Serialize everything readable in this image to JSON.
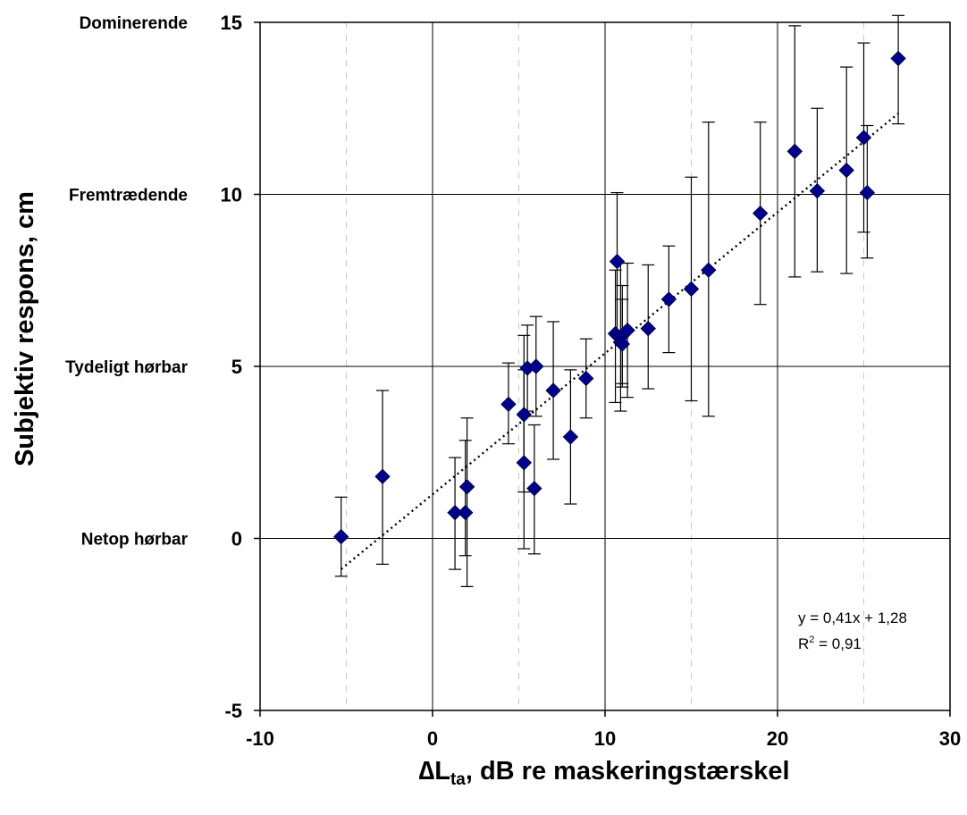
{
  "chart_data": {
    "type": "scatter",
    "xlabel": {
      "delta": "∆",
      "main": "L",
      "sub": "ta",
      "rest": ", dB re maskeringstærskel"
    },
    "ylabel": "Subjektiv respons, cm",
    "xlim": [
      -10,
      30
    ],
    "ylim": [
      -5,
      15
    ],
    "x_ticks": [
      "-10",
      "0",
      "10",
      "20",
      "30"
    ],
    "y_ticks": [
      "-5",
      "0",
      "5",
      "10",
      "15"
    ],
    "y_category_labels": [
      {
        "value": 15,
        "label": "Dominerende"
      },
      {
        "value": 10,
        "label": "Fremtrædende"
      },
      {
        "value": 5,
        "label": "Tydeligt hørbar"
      },
      {
        "value": 0,
        "label": "Netop hørbar"
      }
    ],
    "grid": {
      "major": true,
      "minor_x_dashed": true
    },
    "marker_color": "#00008B",
    "points": [
      {
        "x": -5.3,
        "y": 0.05,
        "lo": -1.1,
        "hi": 1.2
      },
      {
        "x": -2.9,
        "y": 1.8,
        "lo": -0.75,
        "hi": 4.3
      },
      {
        "x": 1.3,
        "y": 0.75,
        "lo": -0.9,
        "hi": 2.35
      },
      {
        "x": 1.9,
        "y": 0.75,
        "lo": -0.5,
        "hi": 2.85
      },
      {
        "x": 2.0,
        "y": 1.5,
        "lo": -1.4,
        "hi": 3.5
      },
      {
        "x": 4.4,
        "y": 3.9,
        "lo": 2.75,
        "hi": 5.1
      },
      {
        "x": 5.3,
        "y": 3.6,
        "lo": 1.35,
        "hi": 5.9
      },
      {
        "x": 5.3,
        "y": 2.2,
        "lo": -0.3,
        "hi": 4.9
      },
      {
        "x": 5.5,
        "y": 4.95,
        "lo": 3.7,
        "hi": 6.2
      },
      {
        "x": 5.9,
        "y": 1.45,
        "lo": -0.45,
        "hi": 3.3
      },
      {
        "x": 6.0,
        "y": 5.0,
        "lo": 3.55,
        "hi": 6.45
      },
      {
        "x": 7.0,
        "y": 4.3,
        "lo": 2.3,
        "hi": 6.3
      },
      {
        "x": 8.0,
        "y": 2.95,
        "lo": 1.0,
        "hi": 4.9
      },
      {
        "x": 8.9,
        "y": 4.65,
        "lo": 3.5,
        "hi": 5.8
      },
      {
        "x": 10.6,
        "y": 5.95,
        "lo": 3.95,
        "hi": 7.8
      },
      {
        "x": 10.7,
        "y": 8.05,
        "lo": 6.0,
        "hi": 10.05
      },
      {
        "x": 10.9,
        "y": 5.7,
        "lo": 3.7,
        "hi": 8.0
      },
      {
        "x": 11.0,
        "y": 5.9,
        "lo": 4.4,
        "hi": 7.35
      },
      {
        "x": 11.0,
        "y": 5.65,
        "lo": 4.5,
        "hi": 6.95
      },
      {
        "x": 11.3,
        "y": 6.05,
        "lo": 4.1,
        "hi": 8.0
      },
      {
        "x": 12.5,
        "y": 6.1,
        "lo": 4.35,
        "hi": 7.95
      },
      {
        "x": 13.7,
        "y": 6.95,
        "lo": 5.4,
        "hi": 8.5
      },
      {
        "x": 15.0,
        "y": 7.25,
        "lo": 4.0,
        "hi": 10.5
      },
      {
        "x": 16.0,
        "y": 7.8,
        "lo": 3.55,
        "hi": 12.1
      },
      {
        "x": 19.0,
        "y": 9.45,
        "lo": 6.8,
        "hi": 12.1
      },
      {
        "x": 21.0,
        "y": 11.25,
        "lo": 7.6,
        "hi": 14.9
      },
      {
        "x": 22.3,
        "y": 10.1,
        "lo": 7.75,
        "hi": 12.5
      },
      {
        "x": 24.0,
        "y": 10.7,
        "lo": 7.7,
        "hi": 13.7
      },
      {
        "x": 25.0,
        "y": 11.65,
        "lo": 8.9,
        "hi": 14.4
      },
      {
        "x": 25.2,
        "y": 10.05,
        "lo": 8.15,
        "hi": 12.0
      },
      {
        "x": 27.0,
        "y": 13.95,
        "lo": 12.05,
        "hi": 15.2
      }
    ],
    "trendline": {
      "slope": 0.41,
      "intercept": 1.28,
      "x_range": [
        -5.3,
        27.0
      ],
      "style": "dotted"
    },
    "annotation": {
      "equation": "y = 0,41x + 1,28",
      "r2_prefix": "R",
      "r2_sup": "2",
      "r2_value": " = 0,91"
    }
  }
}
